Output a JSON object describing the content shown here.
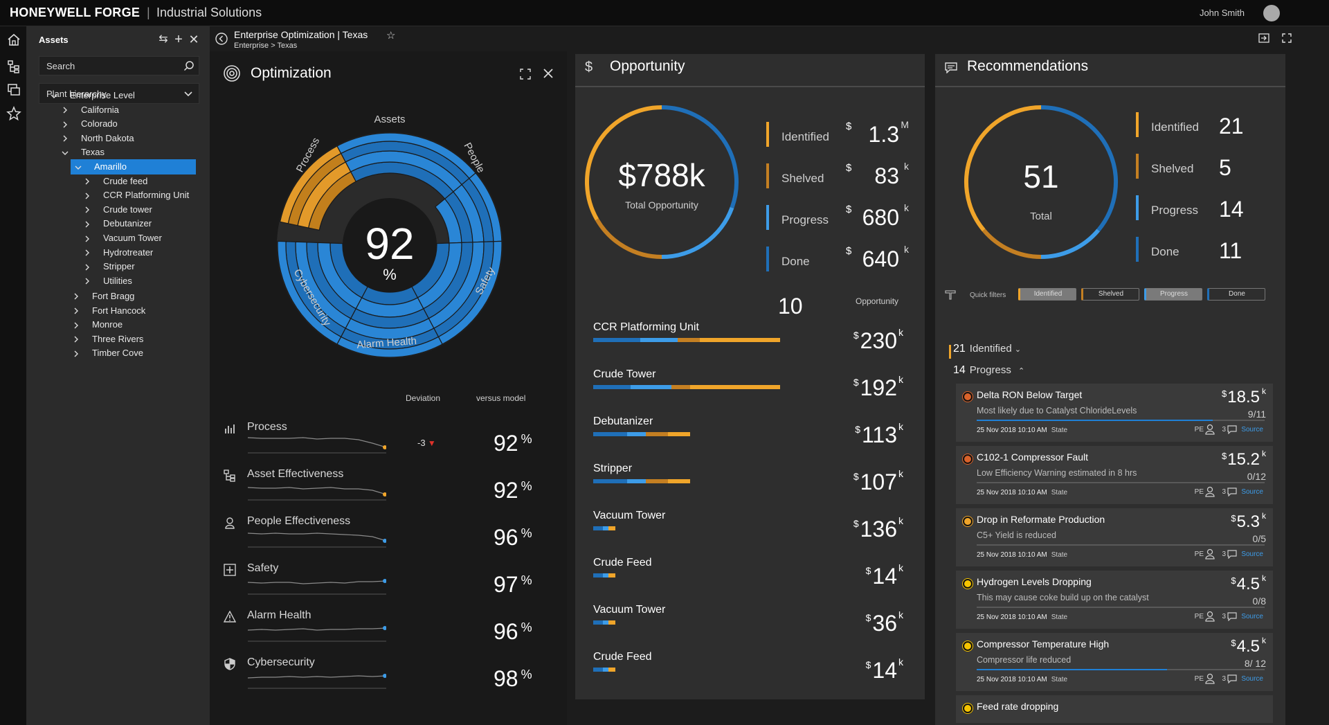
{
  "app": {
    "brand": "HONEYWELL FORGE",
    "separator": "|",
    "subtitle": "Industrial Solutions",
    "user": "John Smith"
  },
  "assets": {
    "title": "Assets",
    "search_placeholder": "Search",
    "hierarchy_select": "Plant hierarchy",
    "tree": [
      {
        "label": "Enterprise Level",
        "level": 0,
        "expanded": true
      },
      {
        "label": "California",
        "level": 1
      },
      {
        "label": "Colorado",
        "level": 1
      },
      {
        "label": "North Dakota",
        "level": 1
      },
      {
        "label": "Texas",
        "level": 1,
        "expanded": true
      },
      {
        "label": "Amarillo",
        "level": 2,
        "expanded": true,
        "selected": true
      },
      {
        "label": "Crude feed",
        "level": 3
      },
      {
        "label": "CCR Platforming Unit",
        "level": 3
      },
      {
        "label": "Crude tower",
        "level": 3
      },
      {
        "label": "Debutanizer",
        "level": 3
      },
      {
        "label": "Vacuum Tower",
        "level": 3
      },
      {
        "label": "Hydrotreater",
        "level": 3
      },
      {
        "label": "Stripper",
        "level": 3
      },
      {
        "label": "Utilities",
        "level": 3
      },
      {
        "label": "Fort Bragg",
        "level": 2
      },
      {
        "label": "Fort Hancock",
        "level": 2
      },
      {
        "label": "Monroe",
        "level": 2
      },
      {
        "label": "Three Rivers",
        "level": 2
      },
      {
        "label": "Timber Cove",
        "level": 2
      }
    ]
  },
  "breadcrumb": {
    "title": "Enterprise Optimization | Texas",
    "path": "Enterprise > Texas"
  },
  "optimization": {
    "title": "Optimization",
    "score": "92",
    "score_unit": "%",
    "segments": [
      "Assets",
      "People",
      "Safety",
      "Alarm Health",
      "Cybersecurity",
      "Process"
    ],
    "col_deviation": "Deviation",
    "col_versus": "versus model",
    "metrics": [
      {
        "label": "Process",
        "icon": "bar-chart-icon",
        "value": "92",
        "unit": "%",
        "deviation": "-3",
        "line_color": "#f0a52a"
      },
      {
        "label": "Asset Effectiveness",
        "icon": "hierarchy-icon",
        "value": "92",
        "unit": "%",
        "line_color": "#f0a52a"
      },
      {
        "label": "People Effectiveness",
        "icon": "person-icon",
        "value": "96",
        "unit": "%",
        "line_color": "#3d9ce8"
      },
      {
        "label": "Safety",
        "icon": "plus-box-icon",
        "value": "97",
        "unit": "%",
        "line_color": "#3d9ce8"
      },
      {
        "label": "Alarm Health",
        "icon": "warning-icon",
        "value": "96",
        "unit": "%",
        "line_color": "#3d9ce8"
      },
      {
        "label": "Cybersecurity",
        "icon": "shield-icon",
        "value": "98",
        "unit": "%",
        "line_color": "#3d9ce8"
      }
    ]
  },
  "opportunity": {
    "title": "Opportunity",
    "icon": "$",
    "total": "$788k",
    "total_label": "Total Opportunity",
    "stats": [
      {
        "label": "Identified",
        "value": "1.3",
        "suffix": "M",
        "color": "#f0a52a"
      },
      {
        "label": "Shelved",
        "value": "83",
        "suffix": "k",
        "color": "#c47f22"
      },
      {
        "label": "Progress",
        "value": "680",
        "suffix": "k",
        "color": "#3d9ce8"
      },
      {
        "label": "Done",
        "value": "640",
        "suffix": "k",
        "color": "#1f6fb8"
      }
    ],
    "count": "10",
    "column_label": "Opportunity",
    "items": [
      {
        "name": "CCR Platforming Unit",
        "value": "230",
        "bar": [
          0.25,
          0.2,
          0.12,
          0.43
        ]
      },
      {
        "name": "Crude Tower",
        "value": "192",
        "bar": [
          0.2,
          0.22,
          0.1,
          0.48
        ]
      },
      {
        "name": "Debutanizer",
        "value": "113",
        "bar": [
          0.18,
          0.1,
          0.12,
          0.12
        ]
      },
      {
        "name": "Stripper",
        "value": "107",
        "bar": [
          0.18,
          0.1,
          0.12,
          0.12
        ]
      },
      {
        "name": "Vacuum Tower",
        "value": "136",
        "bar": [
          0.05,
          0.03,
          0.0,
          0.04
        ]
      },
      {
        "name": "Crude Feed",
        "value": "14",
        "bar": [
          0.05,
          0.03,
          0.0,
          0.04
        ]
      },
      {
        "name": "Vacuum Tower",
        "value": "36",
        "bar": [
          0.05,
          0.03,
          0.0,
          0.04
        ]
      },
      {
        "name": "Crude Feed",
        "value": "14",
        "bar": [
          0.05,
          0.03,
          0.0,
          0.04
        ]
      }
    ]
  },
  "recommendations": {
    "title": "Recommendations",
    "total": "51",
    "total_label": "Total",
    "stats": [
      {
        "label": "Identified",
        "value": "21",
        "color": "#f0a52a"
      },
      {
        "label": "Shelved",
        "value": "5",
        "color": "#c47f22"
      },
      {
        "label": "Progress",
        "value": "14",
        "color": "#3d9ce8"
      },
      {
        "label": "Done",
        "value": "11",
        "color": "#1f6fb8"
      }
    ],
    "quick_filters_label": "Quick filters",
    "chips": [
      "Identified",
      "Shelved",
      "Progress",
      "Done"
    ],
    "group_identified": {
      "count": "21",
      "label": "Identified"
    },
    "group_progress": {
      "count": "14",
      "label": "Progress"
    },
    "cards": [
      {
        "title": "Delta RON Below Target",
        "sub": "Most likely due to Catalyst ChlorideLevels",
        "value": "18.5",
        "suffix": "k",
        "count": "9/11",
        "progress": 0.82,
        "date": "25 Nov 2018 10:10 AM",
        "state": "State",
        "pe": "PE",
        "comments": "3",
        "source": "Source",
        "dot": "#d9622a"
      },
      {
        "title": "C102-1 Compressor Fault",
        "sub": "Low Efficiency Warning estimated in 8 hrs",
        "value": "15.2",
        "suffix": "k",
        "count": "0/12",
        "progress": 0.0,
        "date": "25 Nov 2018 10:10 AM",
        "state": "State",
        "pe": "PE",
        "comments": "3",
        "source": "Source",
        "dot": "#d9622a"
      },
      {
        "title": "Drop in Reformate Production",
        "sub": "C5+ Yield is reduced",
        "value": "5.3",
        "suffix": "k",
        "count": "0/5",
        "progress": 0.0,
        "date": "25 Nov 2018 10:10 AM",
        "state": "State",
        "pe": "PE",
        "comments": "3",
        "source": "Source",
        "dot": "#f0a52a"
      },
      {
        "title": "Hydrogen Levels Dropping",
        "sub": "This may cause coke build up on the catalyst",
        "value": "4.5",
        "suffix": "k",
        "count": "0/8",
        "progress": 0.0,
        "date": "25 Nov 2018 10:10 AM",
        "state": "State",
        "pe": "PE",
        "comments": "3",
        "source": "Source",
        "dot": "#f5c400"
      },
      {
        "title": "Compressor Temperature High",
        "sub": "Compressor life reduced",
        "value": "4.5",
        "suffix": "k",
        "count": "8/ 12",
        "progress": 0.66,
        "date": "25 Nov 2018 10:10 AM",
        "state": "State",
        "pe": "PE",
        "comments": "3",
        "source": "Source",
        "dot": "#f5c400"
      },
      {
        "title": "Feed rate dropping",
        "dot": "#f5c400"
      }
    ]
  }
}
